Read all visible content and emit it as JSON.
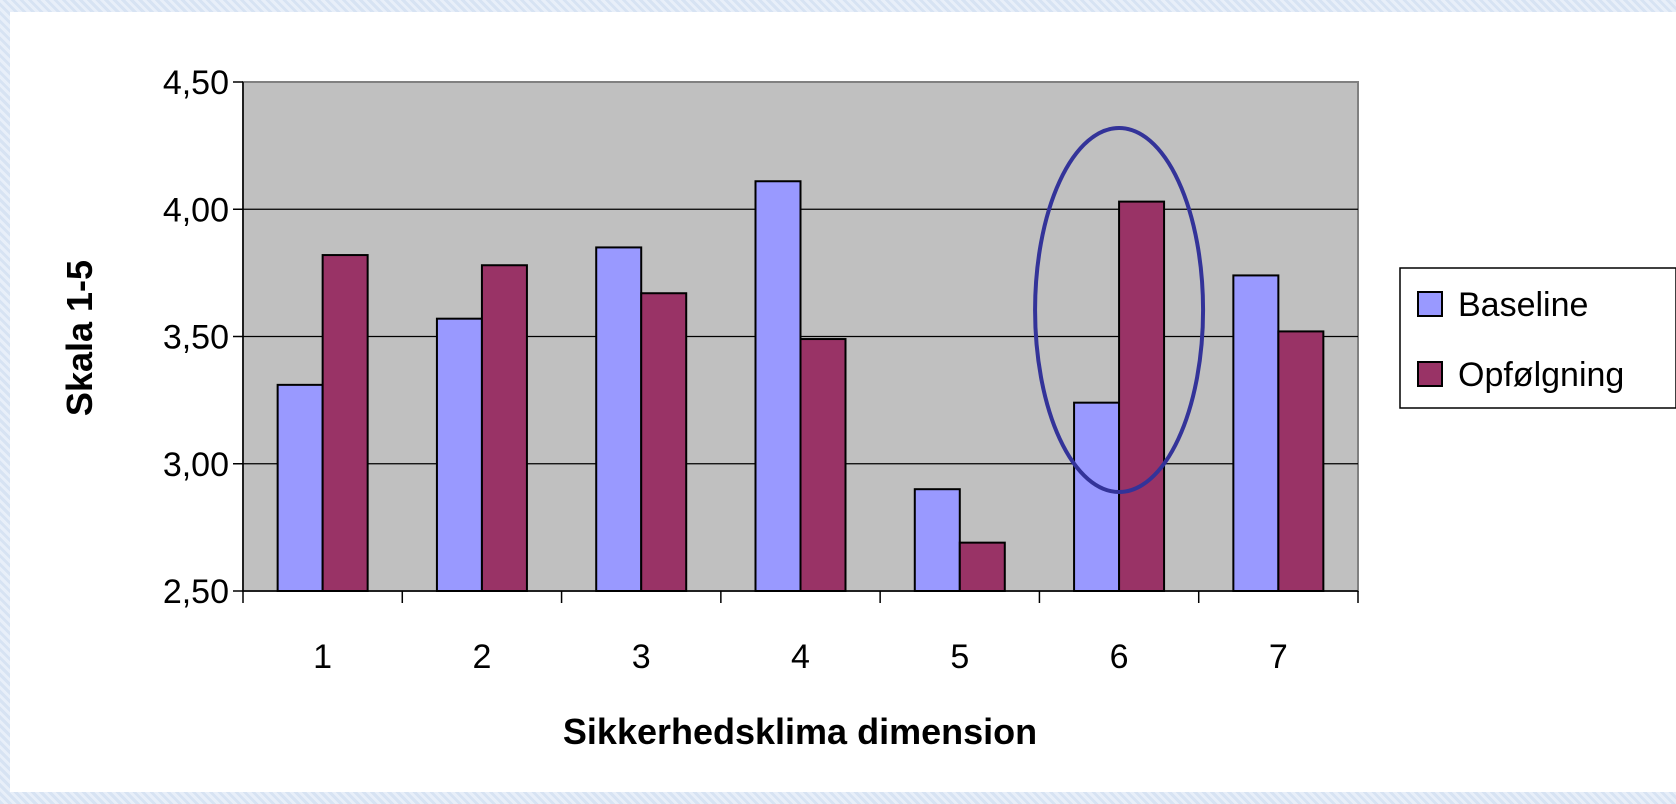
{
  "chart_data": {
    "type": "bar",
    "categories": [
      "1",
      "2",
      "3",
      "4",
      "5",
      "6",
      "7"
    ],
    "series": [
      {
        "name": "Baseline",
        "values": [
          3.31,
          3.57,
          3.85,
          4.11,
          2.9,
          3.24,
          3.74
        ],
        "color": "#9999ff"
      },
      {
        "name": "Opfølgning",
        "values": [
          3.82,
          3.78,
          3.67,
          3.49,
          2.69,
          4.03,
          3.52
        ],
        "color": "#993366"
      }
    ],
    "xlabel": "Sikkerhedsklima dimension",
    "ylabel": "Skala 1-5",
    "ylim": [
      2.5,
      4.5
    ],
    "yticks": [
      "2,50",
      "3,00",
      "3,50",
      "4,00",
      "4,50"
    ],
    "ytick_values": [
      2.5,
      3.0,
      3.5,
      4.0,
      4.5
    ],
    "plot_background": "#c0c0c0",
    "grid": true,
    "legend_position": "right",
    "highlight": {
      "category": "6",
      "shape": "ellipse",
      "color": "#333399"
    }
  }
}
